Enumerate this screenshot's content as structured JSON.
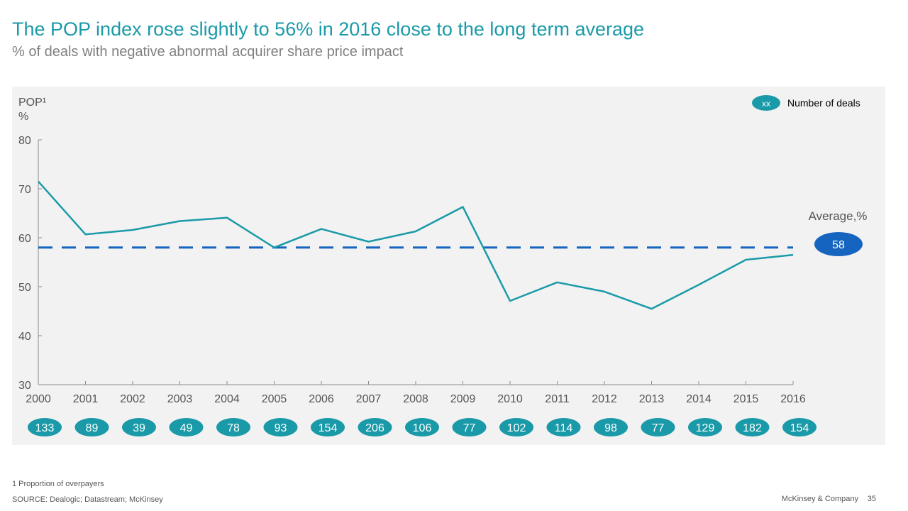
{
  "header": {
    "title": "The POP index rose slightly to 56% in 2016 close to the long term average",
    "subtitle": "% of deals with negative abnormal acquirer share price impact"
  },
  "footer": {
    "footnote": "1 Proportion of overpayers",
    "source": "SOURCE: Dealogic; Datastream; McKinsey",
    "brand": "McKinsey & Company",
    "page_number": "35"
  },
  "colors": {
    "line": "#1a9aa8",
    "average": "#1565c0",
    "bubble": "#1a9aa8",
    "panel": "#f2f2f2",
    "axis_text": "#555555"
  },
  "chart_data": {
    "type": "line",
    "ylabel": "POP¹",
    "yunit": "%",
    "ylim": [
      30,
      80
    ],
    "yticks": [
      30,
      40,
      50,
      60,
      70,
      80
    ],
    "x": [
      "2000",
      "2001",
      "2002",
      "2003",
      "2004",
      "2005",
      "2006",
      "2007",
      "2008",
      "2009",
      "2010",
      "2011",
      "2012",
      "2013",
      "2014",
      "2015",
      "2016"
    ],
    "values": [
      71.5,
      60.7,
      61.6,
      63.4,
      64.1,
      58.0,
      61.8,
      59.2,
      61.3,
      66.3,
      47.1,
      50.9,
      49.0,
      45.5,
      50.4,
      55.5,
      56.5
    ],
    "average": {
      "label": "Average,%",
      "value": 58,
      "display": "58"
    },
    "deals": [
      "133",
      "89",
      "39",
      "49",
      "78",
      "93",
      "154",
      "206",
      "106",
      "77",
      "102",
      "114",
      "98",
      "77",
      "129",
      "182",
      "154"
    ],
    "legend": {
      "marker": "xx",
      "label": "Number of deals",
      "position": "top-right"
    },
    "grid": false
  }
}
